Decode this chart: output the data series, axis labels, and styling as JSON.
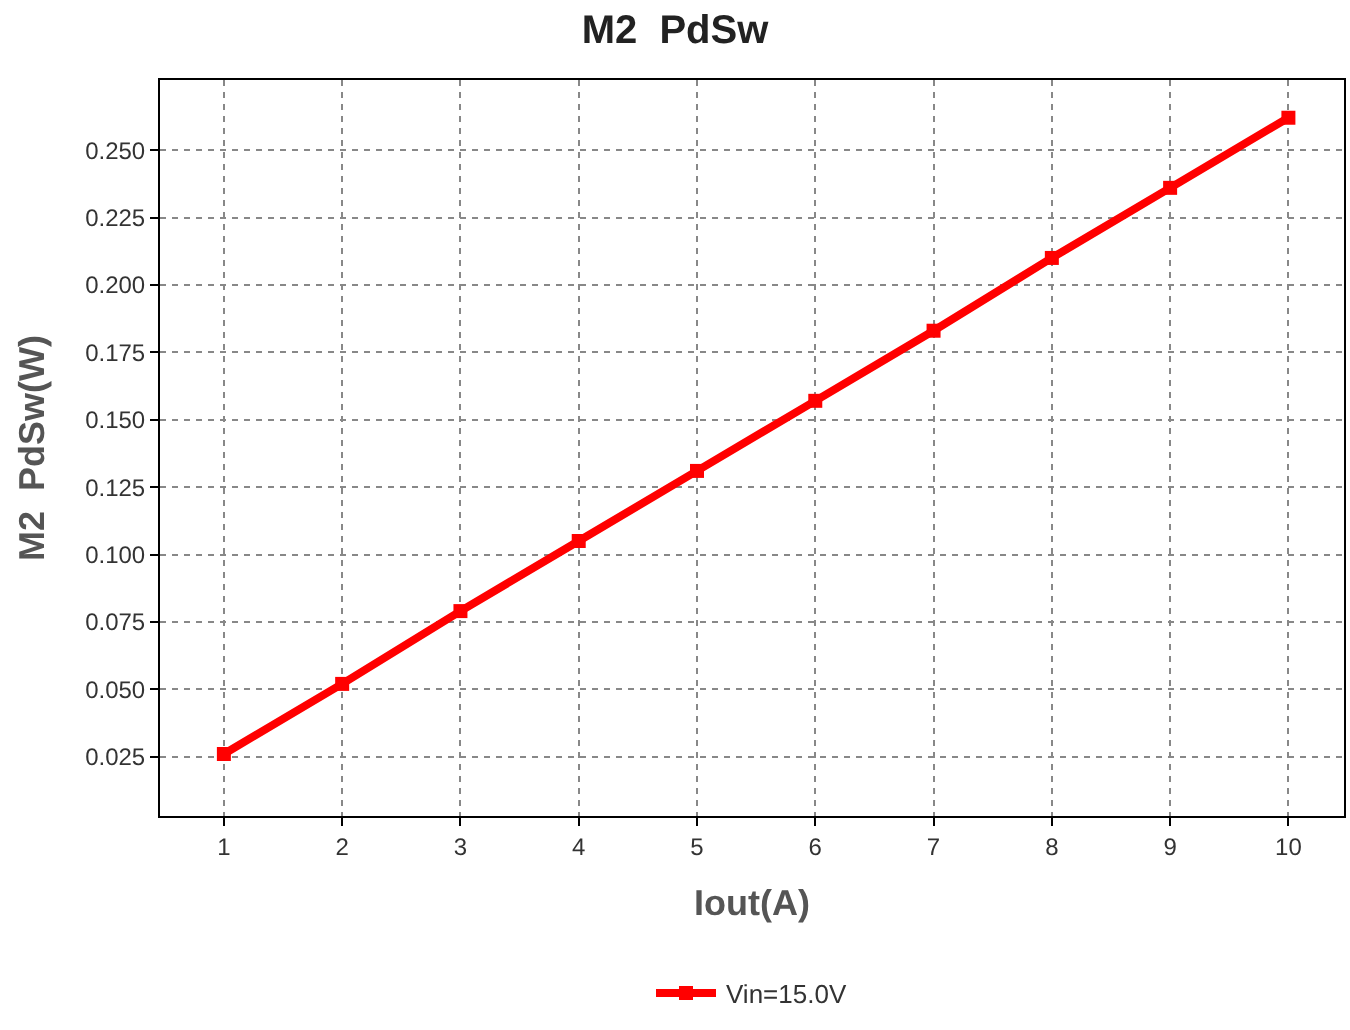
{
  "chart_data": {
    "type": "line",
    "title": "M2  PdSw",
    "xlabel": "Iout(A)",
    "ylabel": "M2  PdSw(W)",
    "x": [
      1,
      2,
      3,
      4,
      5,
      6,
      7,
      8,
      9,
      10
    ],
    "series": [
      {
        "name": "Vin=15.0V",
        "color": "#ff0000",
        "values": [
          0.026,
          0.052,
          0.079,
          0.105,
          0.131,
          0.157,
          0.183,
          0.21,
          0.236,
          0.262
        ]
      }
    ],
    "xlim": [
      0.46,
      10.47
    ],
    "xticks": [
      1,
      2,
      3,
      4,
      5,
      6,
      7,
      8,
      9,
      10
    ],
    "ylim": [
      0.003,
      0.276
    ],
    "yticks": [
      {
        "value": 0.025,
        "label": "0.025"
      },
      {
        "value": 0.05,
        "label": "0.050"
      },
      {
        "value": 0.075,
        "label": "0.075"
      },
      {
        "value": 0.1,
        "label": "0.100"
      },
      {
        "value": 0.125,
        "label": "0.125"
      },
      {
        "value": 0.15,
        "label": "0.150"
      },
      {
        "value": 0.175,
        "label": "0.175"
      },
      {
        "value": 0.2,
        "label": "0.200"
      },
      {
        "value": 0.225,
        "label": "0.225"
      },
      {
        "value": 0.25,
        "label": "0.250"
      }
    ],
    "grid": true,
    "legend": "bottom",
    "marker": "square",
    "line_style": "solid"
  }
}
